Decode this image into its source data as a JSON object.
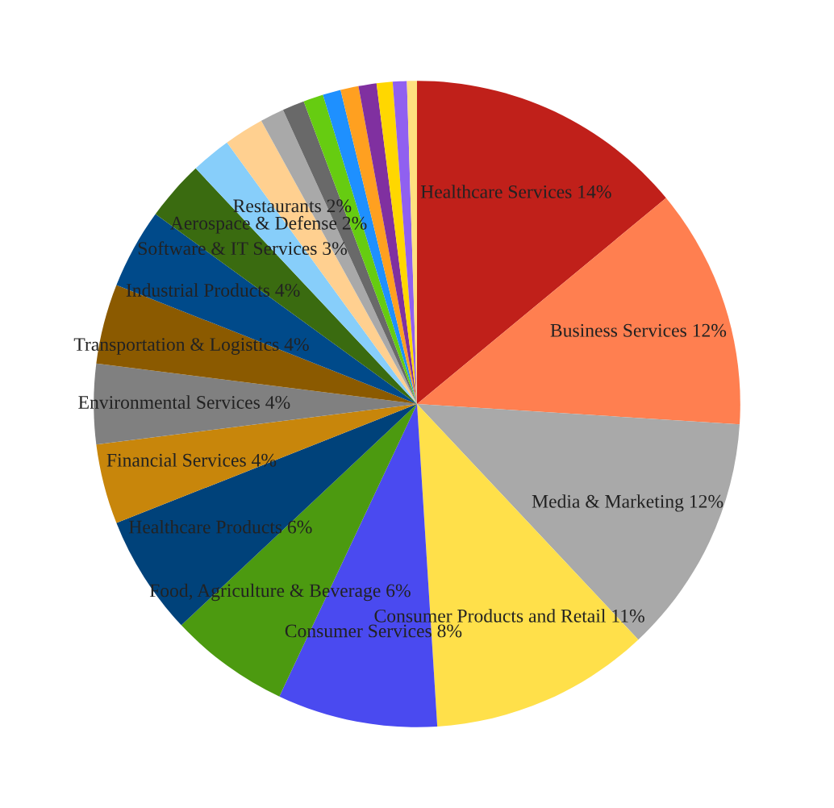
{
  "chart_data": {
    "type": "pie",
    "categories": [
      "Healthcare Services",
      "Business Services",
      "Media & Marketing",
      "Consumer Products and Retail",
      "Consumer Services",
      "Food, Agriculture & Beverage",
      "Healthcare Products",
      "Financial Services",
      "Environmental Services",
      "Transportation & Logistics",
      "Industrial Products",
      "Software & IT Services",
      "Aerospace & Defense",
      "Restaurants",
      null,
      null,
      null,
      null,
      null,
      null,
      null,
      null,
      null
    ],
    "values": [
      14,
      12,
      12,
      11,
      8,
      6,
      6,
      4,
      4,
      4,
      4,
      3,
      2,
      2,
      1.2,
      1.1,
      1.0,
      0.9,
      0.9,
      0.9,
      0.8,
      0.7,
      0.5
    ],
    "value_labels": [
      "14%",
      "12%",
      "12%",
      "11%",
      "8%",
      "6%",
      "6%",
      "4%",
      "4%",
      "4%",
      "4%",
      "3%",
      "2%",
      "2%",
      null,
      null,
      null,
      null,
      null,
      null,
      null,
      null,
      null
    ],
    "colors": [
      "#c0201a",
      "#ff7f50",
      "#a9a9a9",
      "#ffe04a",
      "#4a4af0",
      "#4c9a10",
      "#00427a",
      "#c8860b",
      "#808080",
      "#8b5a00",
      "#004a8a",
      "#3a6b10",
      "#87cefa",
      "#ffd090",
      "#a9a9a9",
      "#696969",
      "#66cc11",
      "#1e90ff",
      "#ffa020",
      "#8030a0",
      "#ffd700",
      "#9060f0",
      "#ffe080"
    ]
  }
}
